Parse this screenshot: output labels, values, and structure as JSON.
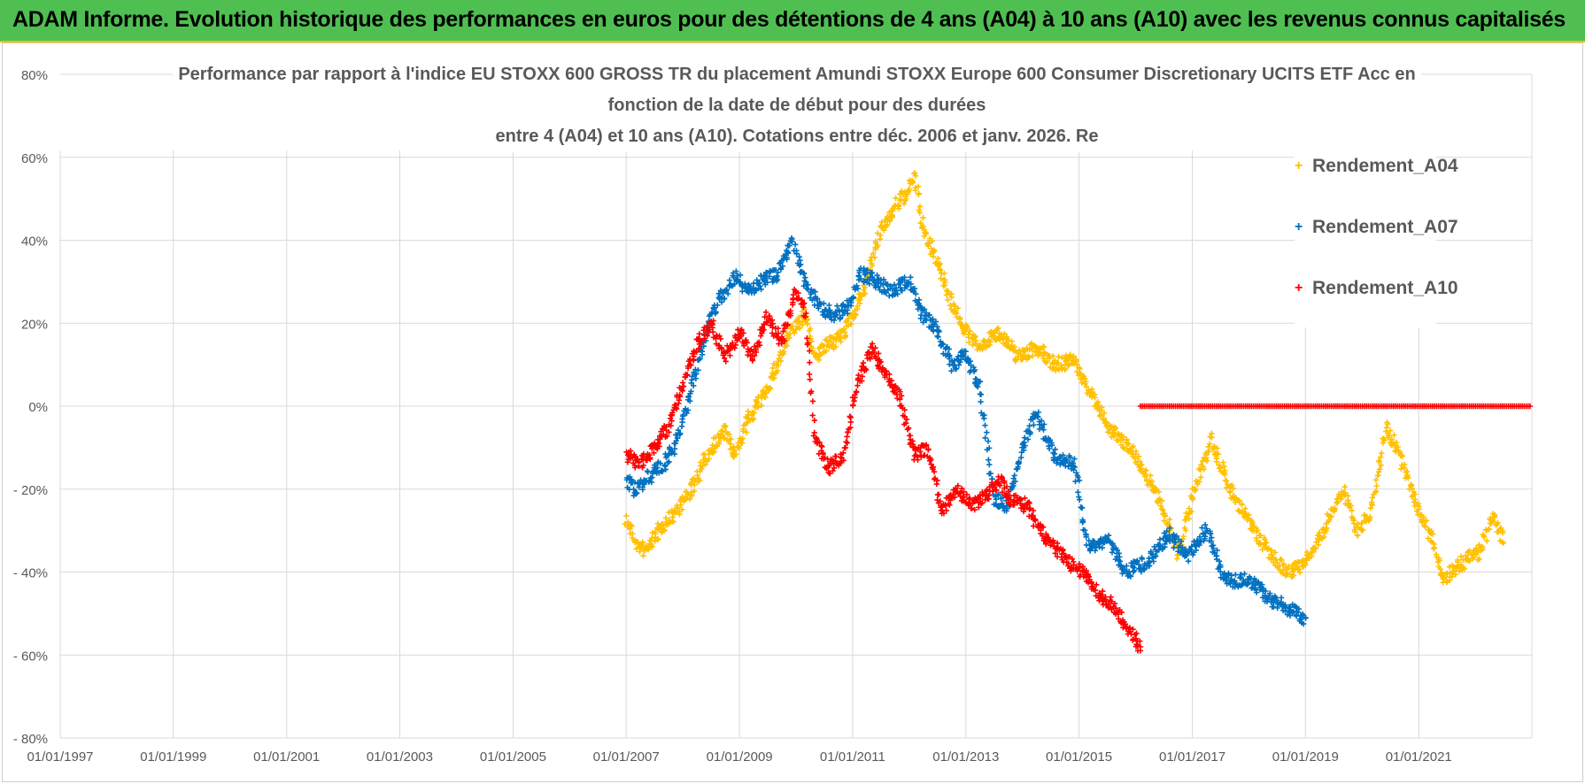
{
  "banner": {
    "title": "ADAM Informe. Evolution historique des performances en euros pour des détentions de 4 ans (A04) à 10 ans (A10) avec les revenus connus capitalisés",
    "background": "#4fbf52"
  },
  "chart_data": {
    "type": "scatter",
    "title_lines": [
      "Performance par rapport à l'indice EU STOXX 600 GROSS TR  du placement Amundi STOXX Europe 600 Consumer Discretionary UCITS ETF Acc en",
      "fonction de la date de début pour des durées",
      "entre 4 (A04) et 10 ans (A10).  Cotations entre déc. 2006 et janv. 2026. Re"
    ],
    "xlabel": "",
    "ylabel": "",
    "xlim": [
      "1997-01-01",
      "2023-01-01"
    ],
    "ylim": [
      -80,
      80
    ],
    "y_ticks": [
      80,
      60,
      40,
      20,
      0,
      -20,
      -40,
      -60,
      -80
    ],
    "y_tick_labels": [
      "80%",
      "60%",
      "40%",
      "20%",
      "0%",
      "- 20%",
      "- 40%",
      "- 60%",
      "- 80%"
    ],
    "x_ticks": [
      "1997-01-01",
      "1999-01-01",
      "2001-01-01",
      "2003-01-01",
      "2005-01-01",
      "2007-01-01",
      "2009-01-01",
      "2011-01-01",
      "2013-01-01",
      "2015-01-01",
      "2017-01-01",
      "2019-01-01",
      "2021-01-01"
    ],
    "x_tick_labels": [
      "01/01/1997",
      "01/01/1999",
      "01/01/2001",
      "01/01/2003",
      "01/01/2005",
      "01/01/2007",
      "01/01/2009",
      "01/01/2011",
      "01/01/2013",
      "01/01/2015",
      "01/01/2017",
      "01/01/2019",
      "01/01/2021"
    ],
    "grid": true,
    "marker": "+",
    "legend_position": "top-right",
    "series": [
      {
        "name": "Rendement_A04",
        "color": "#ffc000",
        "points": [
          [
            "2007-01-01",
            -27
          ],
          [
            "2007-03-01",
            -33
          ],
          [
            "2007-05-01",
            -35
          ],
          [
            "2007-08-01",
            -30
          ],
          [
            "2007-11-01",
            -26
          ],
          [
            "2008-03-01",
            -20
          ],
          [
            "2008-07-01",
            -10
          ],
          [
            "2008-10-01",
            -6
          ],
          [
            "2008-12-01",
            -12
          ],
          [
            "2009-03-01",
            -3
          ],
          [
            "2009-06-01",
            2
          ],
          [
            "2009-09-01",
            10
          ],
          [
            "2009-12-01",
            18
          ],
          [
            "2010-03-01",
            22
          ],
          [
            "2010-05-01",
            12
          ],
          [
            "2010-08-01",
            15
          ],
          [
            "2010-11-01",
            17
          ],
          [
            "2011-01-01",
            22
          ],
          [
            "2011-04-01",
            30
          ],
          [
            "2011-07-01",
            42
          ],
          [
            "2011-10-01",
            48
          ],
          [
            "2012-01-01",
            52
          ],
          [
            "2012-02-01",
            56
          ],
          [
            "2012-04-01",
            42
          ],
          [
            "2012-07-01",
            35
          ],
          [
            "2012-10-01",
            25
          ],
          [
            "2013-01-01",
            18
          ],
          [
            "2013-04-01",
            14
          ],
          [
            "2013-08-01",
            18
          ],
          [
            "2013-12-01",
            12
          ],
          [
            "2014-04-01",
            14
          ],
          [
            "2014-08-01",
            10
          ],
          [
            "2014-12-01",
            11
          ],
          [
            "2015-04-01",
            2
          ],
          [
            "2015-08-01",
            -6
          ],
          [
            "2015-12-01",
            -10
          ],
          [
            "2016-04-01",
            -18
          ],
          [
            "2016-08-01",
            -28
          ],
          [
            "2016-10-01",
            -36
          ],
          [
            "2017-01-01",
            -22
          ],
          [
            "2017-05-01",
            -8
          ],
          [
            "2017-09-01",
            -20
          ],
          [
            "2018-01-01",
            -28
          ],
          [
            "2018-05-01",
            -35
          ],
          [
            "2018-09-01",
            -40
          ],
          [
            "2019-01-01",
            -38
          ],
          [
            "2019-05-01",
            -30
          ],
          [
            "2019-09-01",
            -20
          ],
          [
            "2019-12-01",
            -30
          ],
          [
            "2020-03-01",
            -25
          ],
          [
            "2020-06-01",
            -5
          ],
          [
            "2020-09-01",
            -12
          ],
          [
            "2021-01-01",
            -25
          ],
          [
            "2021-04-01",
            -32
          ],
          [
            "2021-06-01",
            -42
          ],
          [
            "2021-10-01",
            -38
          ],
          [
            "2022-02-01",
            -35
          ],
          [
            "2022-05-01",
            -26
          ],
          [
            "2022-07-01",
            -33
          ]
        ]
      },
      {
        "name": "Rendement_A07",
        "color": "#0070c0",
        "points": [
          [
            "2007-01-01",
            -18
          ],
          [
            "2007-03-01",
            -20
          ],
          [
            "2007-06-01",
            -17
          ],
          [
            "2007-09-01",
            -14
          ],
          [
            "2007-12-01",
            -8
          ],
          [
            "2008-03-01",
            5
          ],
          [
            "2008-06-01",
            18
          ],
          [
            "2008-09-01",
            26
          ],
          [
            "2008-12-01",
            31
          ],
          [
            "2009-03-01",
            28
          ],
          [
            "2009-06-01",
            30
          ],
          [
            "2009-09-01",
            32
          ],
          [
            "2009-12-01",
            40
          ],
          [
            "2010-03-01",
            30
          ],
          [
            "2010-06-01",
            24
          ],
          [
            "2010-09-01",
            22
          ],
          [
            "2010-12-01",
            24
          ],
          [
            "2011-03-01",
            32
          ],
          [
            "2011-06-01",
            30
          ],
          [
            "2011-09-01",
            28
          ],
          [
            "2012-01-01",
            30
          ],
          [
            "2012-04-01",
            22
          ],
          [
            "2012-07-01",
            18
          ],
          [
            "2012-10-01",
            10
          ],
          [
            "2013-01-01",
            12
          ],
          [
            "2013-04-01",
            5
          ],
          [
            "2013-07-01",
            -22
          ],
          [
            "2013-10-01",
            -24
          ],
          [
            "2014-01-01",
            -10
          ],
          [
            "2014-04-01",
            -2
          ],
          [
            "2014-08-01",
            -12
          ],
          [
            "2014-12-01",
            -14
          ],
          [
            "2015-03-01",
            -34
          ],
          [
            "2015-07-01",
            -32
          ],
          [
            "2015-11-01",
            -40
          ],
          [
            "2016-04-01",
            -37
          ],
          [
            "2016-08-01",
            -31
          ],
          [
            "2016-12-01",
            -36
          ],
          [
            "2017-04-01",
            -30
          ],
          [
            "2017-08-01",
            -42
          ],
          [
            "2018-01-01",
            -42
          ],
          [
            "2018-06-01",
            -47
          ],
          [
            "2018-10-01",
            -49
          ],
          [
            "2019-01-01",
            -51
          ]
        ]
      },
      {
        "name": "Rendement_A10",
        "color": "#ff0000",
        "points": [
          [
            "2007-01-01",
            -12
          ],
          [
            "2007-04-01",
            -14
          ],
          [
            "2007-07-01",
            -10
          ],
          [
            "2007-10-01",
            -5
          ],
          [
            "2008-01-01",
            5
          ],
          [
            "2008-04-01",
            15
          ],
          [
            "2008-07-01",
            20
          ],
          [
            "2008-10-01",
            12
          ],
          [
            "2009-01-01",
            18
          ],
          [
            "2009-04-01",
            12
          ],
          [
            "2009-07-01",
            22
          ],
          [
            "2009-10-01",
            15
          ],
          [
            "2010-01-01",
            28
          ],
          [
            "2010-03-01",
            22
          ],
          [
            "2010-05-01",
            -8
          ],
          [
            "2010-08-01",
            -15
          ],
          [
            "2010-11-01",
            -12
          ],
          [
            "2011-02-01",
            5
          ],
          [
            "2011-05-01",
            14
          ],
          [
            "2011-08-01",
            8
          ],
          [
            "2011-11-01",
            2
          ],
          [
            "2012-02-01",
            -12
          ],
          [
            "2012-05-01",
            -10
          ],
          [
            "2012-08-01",
            -25
          ],
          [
            "2012-11-01",
            -20
          ],
          [
            "2013-02-01",
            -24
          ],
          [
            "2013-05-01",
            -22
          ],
          [
            "2013-08-01",
            -18
          ],
          [
            "2013-11-01",
            -23
          ],
          [
            "2014-02-01",
            -24
          ],
          [
            "2014-05-01",
            -30
          ],
          [
            "2014-08-01",
            -34
          ],
          [
            "2014-11-01",
            -38
          ],
          [
            "2015-02-01",
            -40
          ],
          [
            "2015-05-01",
            -45
          ],
          [
            "2015-08-01",
            -48
          ],
          [
            "2015-11-01",
            -53
          ],
          [
            "2016-02-01",
            -58
          ]
        ]
      }
    ],
    "flat_segments": [
      {
        "series": "Rendement_A10",
        "from": "2016-02-01",
        "to": "2023-01-01",
        "value": 0,
        "color": "#ff0000"
      }
    ]
  }
}
